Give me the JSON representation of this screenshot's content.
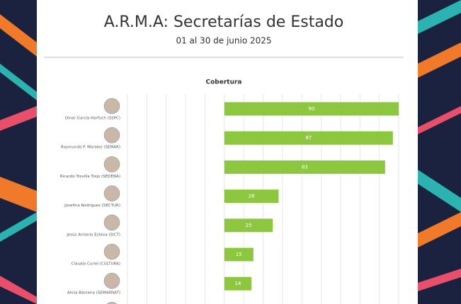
{
  "chart_data": {
    "type": "bar",
    "orientation": "horizontal",
    "title": "A.R.M.A: Secretarías de Estado",
    "subtitle": "01 al 30 de junio 2025",
    "legend_title": "Cobertura",
    "categories": [
      "Omar García Harfuch (SSPC)",
      "Raymundo P. Morales (SEMAR)",
      "Ricardo Trevilla Trejo (SEDENA)",
      "Josefina Rodríguez (SECTUR)",
      "Jesús Antonio Esteva (SICT)",
      "Claudia Curiel (CULTURA)",
      "Alicia Bárcena (SEMARNAT)"
    ],
    "values": [
      90,
      87,
      83,
      28,
      25,
      15,
      14
    ],
    "color": "#8dc63f",
    "xlim": [
      -50,
      90
    ],
    "xticks": [
      -50,
      -40,
      -30,
      -20,
      -10,
      0,
      10,
      20,
      30,
      40,
      50,
      60,
      70,
      80,
      90
    ],
    "grid": true
  }
}
